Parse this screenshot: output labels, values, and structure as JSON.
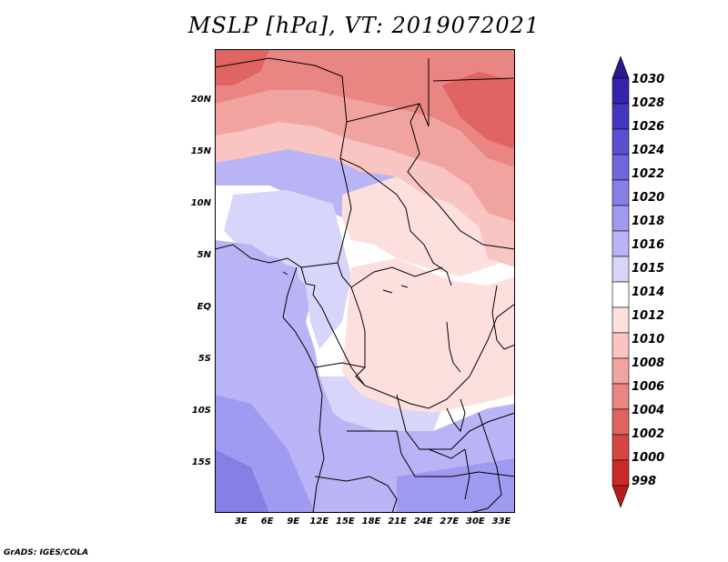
{
  "title": "MSLP [hPa], VT: 2019072021",
  "footer": "GrADS: IGES/COLA",
  "map": {
    "lat_labels": [
      "20N",
      "15N",
      "10N",
      "5N",
      "EQ",
      "5S",
      "10S",
      "15S"
    ],
    "lon_labels": [
      "3E",
      "6E",
      "9E",
      "12E",
      "15E",
      "18E",
      "21E",
      "24E",
      "27E",
      "30E",
      "33E"
    ]
  },
  "colorbar": {
    "labels": [
      "1030",
      "1028",
      "1026",
      "1024",
      "1022",
      "1020",
      "1018",
      "1016",
      "1015",
      "1014",
      "1012",
      "1010",
      "1008",
      "1006",
      "1004",
      "1002",
      "1000",
      "998"
    ],
    "colors": [
      "#2a1a8a",
      "#3324a8",
      "#4437bf",
      "#5a50cf",
      "#7066dc",
      "#877ee6",
      "#a09af0",
      "#b9b4f5",
      "#d7d5fa",
      "#ffffff",
      "#fde0de",
      "#f9c5c2",
      "#f1a3a0",
      "#e98582",
      "#e06461",
      "#d74543",
      "#c82a28",
      "#b51b1a"
    ]
  }
}
